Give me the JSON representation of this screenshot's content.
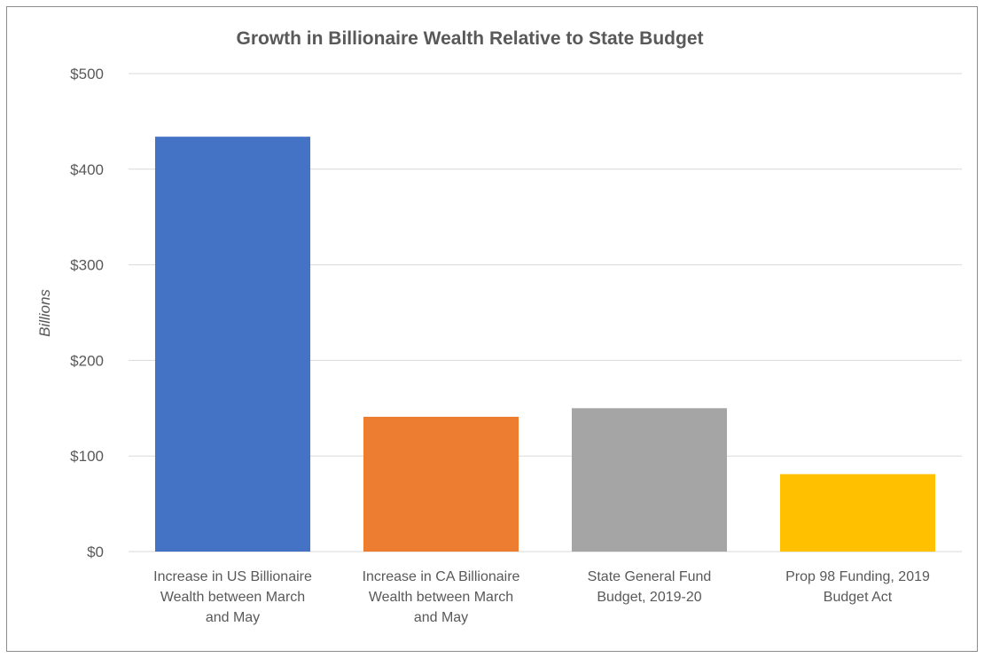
{
  "chart_data": {
    "type": "bar",
    "title": "Growth in  Billionaire Wealth Relative to State Budget",
    "ylabel": "Billions",
    "xlabel": "",
    "ylim": [
      0,
      500
    ],
    "yticks": [
      0,
      100,
      200,
      300,
      400,
      500
    ],
    "ytick_labels": [
      "$0",
      "$100",
      "$200",
      "$300",
      "$400",
      "$500"
    ],
    "grid": true,
    "legend": "none",
    "categories": [
      [
        "Increase in US Billionaire",
        "Wealth between March",
        "and May"
      ],
      [
        "Increase in CA Billionaire",
        "Wealth between March",
        "and May"
      ],
      [
        "State General Fund",
        "Budget, 2019-20"
      ],
      [
        "Prop 98 Funding, 2019",
        "Budget Act"
      ]
    ],
    "values": [
      434,
      141,
      150,
      81
    ],
    "colors": [
      "#4472c4",
      "#ed7d31",
      "#a5a5a5",
      "#ffc000"
    ]
  }
}
